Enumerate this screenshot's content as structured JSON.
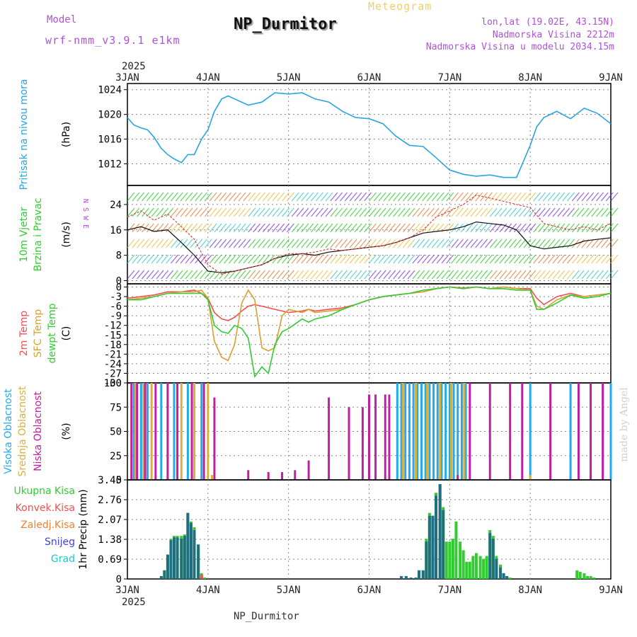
{
  "header": {
    "model_label": "Model",
    "model_version": "wrf-nmm_v3.9.1 e1km",
    "title": "NP_Durmitor",
    "meteogram_label": "Meteogram",
    "lonlat": "lon,lat (19.02E, 43.15N)",
    "altitude": "Nadmorska Visina 2212m",
    "altitude_model": "Nadmorska Visina u modelu 2034.15m"
  },
  "footer": {
    "station": "NP_Durmitor",
    "credit": "made by Angel"
  },
  "colors": {
    "pressure": "#2aa4e0",
    "temp2m": "#f05050",
    "sfc": "#d8a030",
    "dewpt": "#30cc30",
    "cloud_high": "#22aaee",
    "cloud_mid": "#d8b040",
    "cloud_low": "#c020a0",
    "grid": "#888888"
  },
  "x_axis": {
    "year": "2025",
    "ticks": [
      "3JAN",
      "4JAN",
      "5JAN",
      "6JAN",
      "7JAN",
      "8JAN",
      "9JAN"
    ]
  },
  "chart_data": [
    {
      "id": "pressure",
      "type": "line",
      "title": "",
      "side_labels": [
        "Pritisak na nivou mora"
      ],
      "ylabel": "(hPa)",
      "ylim": [
        1008.5,
        1025
      ],
      "yticks": [
        1012,
        1016,
        1020,
        1024
      ],
      "x": [
        0,
        0.08,
        0.17,
        0.25,
        0.33,
        0.42,
        0.5,
        0.58,
        0.67,
        0.75,
        0.83,
        0.92,
        1.0,
        1.08,
        1.17,
        1.25,
        1.33,
        1.5,
        1.67,
        1.83,
        2.0,
        2.17,
        2.33,
        2.5,
        2.67,
        2.83,
        3.0,
        3.17,
        3.33,
        3.5,
        3.67,
        3.83,
        4.0,
        4.17,
        4.33,
        4.5,
        4.67,
        4.83,
        5.0,
        5.08,
        5.17,
        5.33,
        5.5,
        5.67,
        5.83,
        6.0
      ],
      "series": [
        {
          "name": "",
          "values": [
            1019.5,
            1018.3,
            1017.8,
            1017.5,
            1016.3,
            1014.5,
            1013.5,
            1012.8,
            1012.2,
            1013.5,
            1013.5,
            1016,
            1017.5,
            1020.5,
            1022.5,
            1023,
            1022.5,
            1021.5,
            1022,
            1023.5,
            1023.3,
            1023.5,
            1022.5,
            1022,
            1020.5,
            1019.5,
            1019.3,
            1018.5,
            1016.5,
            1015,
            1014.8,
            1013,
            1011,
            1010.3,
            1010,
            1010.2,
            1009.8,
            1009.8,
            1015,
            1018,
            1019.5,
            1020.5,
            1019.3,
            1021,
            1020.2,
            1018.5
          ]
        }
      ]
    },
    {
      "id": "wind",
      "type": "line",
      "title": "",
      "side_labels": [
        "10m Vjetar",
        "Brzina i Pravac"
      ],
      "ylabel": "(m/s)",
      "compass": "N S W E",
      "ylim": [
        -1,
        30
      ],
      "yticks": [
        0,
        8,
        16,
        24
      ],
      "x": [
        0,
        0.17,
        0.33,
        0.5,
        0.67,
        0.83,
        1.0,
        1.17,
        1.33,
        1.5,
        1.67,
        1.83,
        2.0,
        2.17,
        2.33,
        2.5,
        2.67,
        2.83,
        3.0,
        3.17,
        3.33,
        3.5,
        3.67,
        3.83,
        4.0,
        4.17,
        4.33,
        4.5,
        4.67,
        4.83,
        5.0,
        5.17,
        5.33,
        5.5,
        5.67,
        5.83,
        6.0
      ],
      "series": [
        {
          "name": "",
          "values": [
            16,
            17,
            15.5,
            16,
            12,
            8,
            3,
            2.5,
            3,
            4,
            5,
            7,
            8,
            8.5,
            8,
            9,
            9.5,
            10,
            10.5,
            11,
            12,
            13.5,
            15,
            15.5,
            16,
            17,
            18.5,
            18,
            17.5,
            16,
            11,
            10,
            10.5,
            11,
            12.5,
            13,
            13.5
          ]
        },
        {
          "name": "",
          "values": [
            20,
            22,
            19,
            21,
            17,
            13,
            5,
            2,
            3,
            4,
            5,
            7,
            8.5,
            8.5,
            9,
            10,
            9.5,
            10,
            10.5,
            11,
            12,
            13.5,
            16,
            20,
            22,
            24,
            27,
            26,
            25,
            24,
            23,
            18,
            17,
            16,
            17,
            16,
            18
          ]
        }
      ]
    },
    {
      "id": "temperature",
      "type": "line",
      "title": "",
      "side_labels": [
        "2m Temp",
        "SFC Temp",
        "dewpt Temp"
      ],
      "ylabel": "(C)",
      "ylim": [
        -30,
        1
      ],
      "yticks": [
        0,
        -3,
        -6,
        -9,
        -12,
        -15,
        -18,
        -21,
        -24,
        -27,
        -30
      ],
      "x": [
        0,
        0.17,
        0.33,
        0.5,
        0.67,
        0.83,
        0.92,
        1.0,
        1.08,
        1.17,
        1.25,
        1.33,
        1.42,
        1.5,
        1.58,
        1.67,
        1.75,
        1.83,
        1.92,
        2.0,
        2.17,
        2.25,
        2.33,
        2.5,
        2.67,
        2.83,
        3.0,
        3.17,
        3.33,
        3.5,
        3.67,
        3.83,
        4.0,
        4.17,
        4.33,
        4.5,
        4.67,
        4.83,
        5.0,
        5.08,
        5.17,
        5.33,
        5.5,
        5.67,
        5.83,
        6.0
      ],
      "series": [
        {
          "name": "2m Temp",
          "values": [
            -3.5,
            -3,
            -2.5,
            -1.5,
            -1.5,
            -1,
            -2,
            -3.5,
            -8,
            -10,
            -10.5,
            -9.5,
            -7.5,
            -6,
            -5.5,
            -6,
            -6.5,
            -7,
            -7.5,
            -8,
            -7.5,
            -7,
            -7.5,
            -7,
            -6.5,
            -5.5,
            -4,
            -3,
            -2.5,
            -2,
            -1.5,
            -0.5,
            0,
            -0.3,
            0,
            -0.5,
            0,
            -0.5,
            -0.5,
            -3.5,
            -5.5,
            -3,
            -2,
            -3,
            -2.5,
            -2
          ]
        },
        {
          "name": "SFC Temp",
          "values": [
            -4,
            -3.5,
            -3,
            -2,
            -1.5,
            -1.5,
            -1,
            -3.5,
            -17,
            -22,
            -23,
            -18,
            -5,
            -1,
            -4,
            -19,
            -20,
            -19,
            -9,
            -7,
            -8,
            -7,
            -8,
            -7.5,
            -7,
            -5.5,
            -4,
            -3,
            -2.5,
            -2,
            -1.5,
            -0.5,
            0,
            -0.5,
            0,
            -0.5,
            0,
            -0.5,
            -1,
            -6,
            -7,
            -4,
            -2.5,
            -3,
            -2.5,
            -2
          ]
        },
        {
          "name": "dewpt Temp",
          "values": [
            -4,
            -4,
            -3,
            -2,
            -2,
            -2,
            -2,
            -4,
            -12,
            -14,
            -14.5,
            -12,
            -13,
            -16,
            -28,
            -25,
            -27,
            -18,
            -14,
            -13,
            -10,
            -11,
            -10,
            -9,
            -7,
            -5.5,
            -4,
            -3,
            -2.5,
            -2,
            -1,
            -0.5,
            0,
            -0.5,
            0,
            -0.5,
            -0.5,
            -1,
            -1,
            -7,
            -7,
            -5,
            -2.5,
            -3.5,
            -3,
            -2
          ]
        }
      ]
    },
    {
      "id": "clouds",
      "type": "bar",
      "title": "",
      "side_labels": [
        "Visoka Oblacnost",
        "Srednja Oblacnost",
        "Niska Oblacnost"
      ],
      "ylabel": "(%)",
      "ylim": [
        0,
        100
      ],
      "yticks": [
        0,
        25,
        50,
        75,
        100
      ],
      "series": [
        {
          "name": "Visoka Oblacnost",
          "x": [
            0.08,
            0.17,
            0.25,
            0.42,
            0.58,
            0.75,
            0.92,
            3.35,
            3.4,
            3.45,
            3.5,
            3.55,
            3.6,
            3.65,
            3.7,
            3.75,
            3.8,
            3.85,
            3.9,
            3.95,
            4.0,
            4.05,
            4.1,
            4.15,
            4.2,
            5.0,
            5.5,
            6.0
          ],
          "values": [
            100,
            100,
            100,
            100,
            100,
            100,
            100,
            100,
            100,
            100,
            100,
            100,
            100,
            100,
            100,
            100,
            100,
            100,
            100,
            100,
            100,
            100,
            100,
            100,
            100,
            100,
            100,
            100
          ]
        },
        {
          "name": "Srednja Oblacnost",
          "x": [
            0.1,
            0.2,
            0.3,
            0.5,
            0.67,
            0.83,
            1.0,
            1.05,
            3.42,
            3.58,
            3.72,
            3.88,
            4.02,
            4.18,
            5.0
          ],
          "values": [
            100,
            100,
            100,
            100,
            100,
            100,
            100,
            5,
            100,
            100,
            100,
            100,
            100,
            100,
            5
          ]
        },
        {
          "name": "Niska Oblacnost",
          "x": [
            0.05,
            0.12,
            0.22,
            0.35,
            0.5,
            0.62,
            0.8,
            0.95,
            1.08,
            1.5,
            1.75,
            1.92,
            2.08,
            2.25,
            2.5,
            2.75,
            2.92,
            3.0,
            3.08,
            3.2,
            3.25,
            4.1,
            4.25,
            4.5,
            4.75,
            4.9,
            5.25,
            5.6,
            5.75,
            5.9
          ],
          "values": [
            100,
            100,
            100,
            100,
            100,
            100,
            100,
            100,
            85,
            10,
            8,
            8,
            10,
            20,
            85,
            75,
            75,
            88,
            88,
            88,
            88,
            5,
            100,
            100,
            100,
            100,
            100,
            100,
            100,
            100
          ]
        }
      ]
    },
    {
      "id": "precip",
      "type": "bar",
      "title": "",
      "side_labels": [
        "Ukupna Kisa",
        "Konvek.Kisa",
        "Zaledj.Kisa",
        "Snijeg",
        "Grad"
      ],
      "ylabel": "1hr Precip (mm)",
      "ylim": [
        0,
        3.45
      ],
      "yticks": [
        0,
        0.69,
        1.38,
        2.07,
        2.76,
        3.45
      ],
      "x": [
        0.42,
        0.46,
        0.5,
        0.54,
        0.58,
        0.62,
        0.67,
        0.71,
        0.75,
        0.79,
        0.83,
        0.88,
        0.92,
        0.96,
        3.4,
        3.46,
        3.52,
        3.58,
        3.62,
        3.67,
        3.71,
        3.75,
        3.79,
        3.83,
        3.88,
        3.92,
        3.96,
        4.0,
        4.04,
        4.08,
        4.13,
        4.17,
        4.21,
        4.25,
        4.29,
        4.33,
        4.38,
        4.42,
        4.46,
        4.5,
        4.54,
        4.58,
        4.63,
        4.67,
        4.71,
        4.75,
        5.58,
        5.62,
        5.67,
        5.71,
        5.75,
        5.79
      ],
      "series": [
        {
          "name": "Ukupna Kisa",
          "values": [
            0.1,
            0.3,
            0.85,
            1.4,
            1.5,
            1.5,
            1.5,
            1.55,
            2.3,
            2.0,
            1.8,
            1.2,
            0.2,
            0.05,
            0.1,
            0.1,
            0.05,
            0.05,
            0.3,
            0.3,
            1.4,
            2.3,
            2.2,
            3.0,
            3.3,
            2.5,
            1.3,
            1.3,
            1.4,
            2.0,
            1.3,
            1.0,
            0.6,
            0.6,
            0.8,
            0.9,
            0.8,
            0.7,
            0.8,
            1.7,
            1.5,
            0.8,
            0.5,
            0.2,
            0.1,
            0.05,
            0.3,
            0.25,
            0.2,
            0.1,
            0.1,
            0.05
          ]
        },
        {
          "name": "Konvek.Kisa",
          "values": [
            0,
            0,
            0,
            0,
            0,
            0,
            0,
            0,
            0,
            0,
            0,
            0,
            0.15,
            0,
            0,
            0,
            0,
            0,
            0,
            0,
            0,
            0,
            0,
            0,
            0,
            0,
            0,
            0,
            0,
            0,
            0,
            0,
            0,
            0,
            0,
            0,
            0,
            0,
            0,
            0,
            0,
            0,
            0,
            0,
            0,
            0,
            0,
            0,
            0,
            0,
            0,
            0
          ]
        },
        {
          "name": "Zaledj.Kisa",
          "values": [
            0,
            0,
            0,
            0,
            0,
            0,
            0,
            0,
            0,
            0,
            0,
            0,
            0,
            0,
            0,
            0,
            0,
            0,
            0,
            0,
            0,
            0,
            0,
            0,
            0,
            0,
            0,
            0,
            0,
            0,
            0,
            0,
            0,
            0,
            0,
            0,
            0,
            0,
            0,
            0,
            0,
            0,
            0,
            0,
            0,
            0,
            0,
            0,
            0,
            0,
            0,
            0
          ]
        },
        {
          "name": "Snijeg",
          "values": [
            0.1,
            0.3,
            0.85,
            1.35,
            1.45,
            1.45,
            1.4,
            1.5,
            2.3,
            1.95,
            1.7,
            1.2,
            0,
            0,
            0.1,
            0.1,
            0.05,
            0.05,
            0.3,
            0.3,
            1.3,
            2.2,
            2.2,
            2.9,
            3.3,
            2.4,
            0,
            0,
            0,
            0,
            0,
            0,
            0,
            0,
            0,
            0,
            0,
            0,
            0,
            1.6,
            1.4,
            0.7,
            0.4,
            0.2,
            0.1,
            0,
            0,
            0,
            0,
            0,
            0,
            0
          ]
        },
        {
          "name": "Grad",
          "values": [
            0,
            0,
            0,
            0,
            0,
            0,
            0,
            0,
            0,
            0,
            0,
            0,
            0,
            0,
            0,
            0,
            0,
            0,
            0,
            0,
            0,
            0,
            0,
            0,
            0,
            0,
            0,
            0,
            0,
            0,
            0,
            0,
            0,
            0,
            0,
            0,
            0,
            0,
            0,
            0,
            0,
            0,
            0,
            0,
            0,
            0,
            0,
            0,
            0,
            0,
            0,
            0
          ]
        }
      ]
    }
  ]
}
